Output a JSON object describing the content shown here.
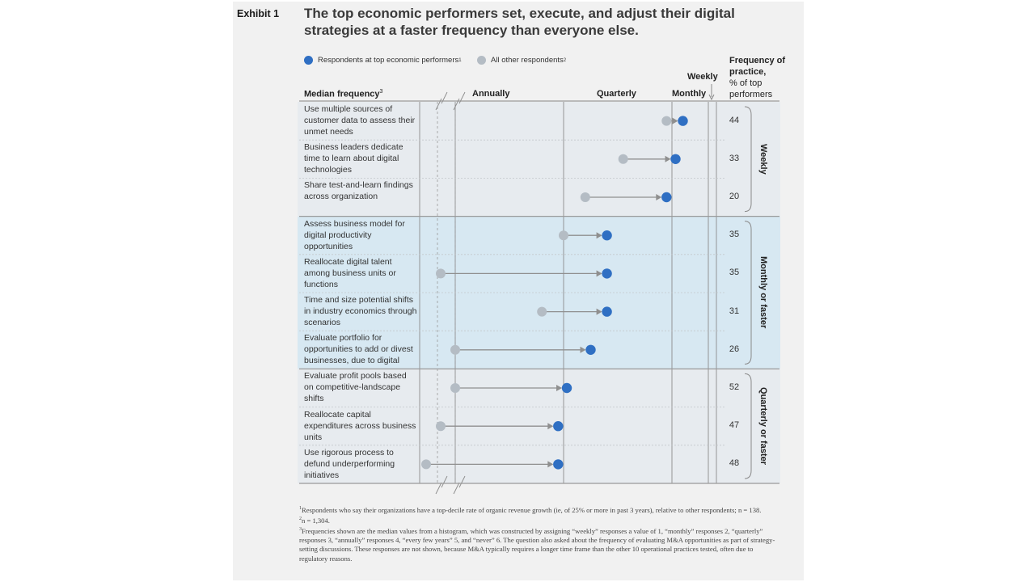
{
  "exhibit_label": "Exhibit 1",
  "title": "The top economic performers set, execute, and adjust their digital strategies at a faster frequency than everyone else.",
  "legend": {
    "top": {
      "label": "Respondents at top economic performers",
      "note": "1",
      "color": "#2f6fc3"
    },
    "others": {
      "label": "All other respondents",
      "note": "2",
      "color": "#b4bcc4"
    }
  },
  "header": {
    "median_frequency": "Median frequency",
    "median_note": "3",
    "weekly": "Weekly",
    "frequency_title": "Frequency of practice,",
    "frequency_sub": "% of top performers"
  },
  "chart_data": {
    "type": "dumbbell",
    "x_axis": {
      "title": "Median frequency",
      "scale": "1 = weekly, 2 = monthly, 3 = quarterly, 4 = annually",
      "ticks": [
        {
          "label": "Annually",
          "value": 4
        },
        {
          "label": "Quarterly",
          "value": 3
        },
        {
          "label": "Monthly",
          "value": 2
        },
        {
          "label": "Weekly",
          "value": 1
        }
      ],
      "range": [
        5.2,
        1
      ]
    },
    "series": [
      {
        "name": "All other respondents",
        "color": "#b4bcc4"
      },
      {
        "name": "Respondents at top economic performers",
        "color": "#2f6fc3"
      }
    ],
    "groups": [
      {
        "label": "Weekly",
        "shaded": false
      },
      {
        "label": "Monthly or faster",
        "shaded": true
      },
      {
        "label": "Quarterly or faster",
        "shaded": false
      }
    ],
    "rows": [
      {
        "label": "Use multiple sources of customer data to assess their unmet needs",
        "others": 2.05,
        "top": 1.7,
        "pct": "44",
        "group": 0
      },
      {
        "label": "Business leaders dedicate time to learn about digital technologies",
        "others": 2.45,
        "top": 1.9,
        "pct": "33",
        "group": 0
      },
      {
        "label": "Share test-and-learn findings across organization",
        "others": 2.8,
        "top": 2.05,
        "pct": "20",
        "group": 0
      },
      {
        "label": "Assess business model for digital productivity opportunities",
        "others": 3.0,
        "top": 2.6,
        "pct": "35",
        "group": 1
      },
      {
        "label": "Reallocate digital talent among business units or functions",
        "others": 4.2,
        "top": 2.6,
        "pct": "35",
        "group": 1
      },
      {
        "label": "Time and size potential shifts in industry economics through scenarios",
        "others": 3.2,
        "top": 2.6,
        "pct": "31",
        "group": 1
      },
      {
        "label": "Evaluate portfolio for opportunities to add or divest businesses, due to digital",
        "others": 4.0,
        "top": 2.75,
        "pct": "26",
        "group": 1
      },
      {
        "label": "Evaluate profit pools based on competitive-landscape shifts",
        "others": 4.0,
        "top": 2.97,
        "pct": "52",
        "group": 2
      },
      {
        "label": "Reallocate capital expenditures across business units",
        "others": 4.2,
        "top": 3.05,
        "pct": "47",
        "group": 2
      },
      {
        "label": "Use rigorous process to defund underperforming initiatives",
        "others": 4.4,
        "top": 3.05,
        "pct": "48",
        "group": 2
      }
    ]
  },
  "footnotes": [
    {
      "num": "1",
      "text": "Respondents who say their organizations have a top-decile rate of organic revenue growth (ie, of 25% or more in past 3 years), relative to other respondents; n = 138."
    },
    {
      "num": "2",
      "text": "n = 1,304."
    },
    {
      "num": "3",
      "text": "Frequencies shown are the median values from a histogram, which was constructed by assigning “weekly” responses a value of 1, “monthly” responses 2, “quarterly” responses 3, “annually” responses 4, “every few years” 5, and “never” 6. The question also asked about the frequency of evaluating M&A opportunities as part of strategy-setting discussions. These responses are not shown, because M&A typically requires a longer time frame than the other 10 operational practices tested, often due to regulatory reasons."
    }
  ]
}
